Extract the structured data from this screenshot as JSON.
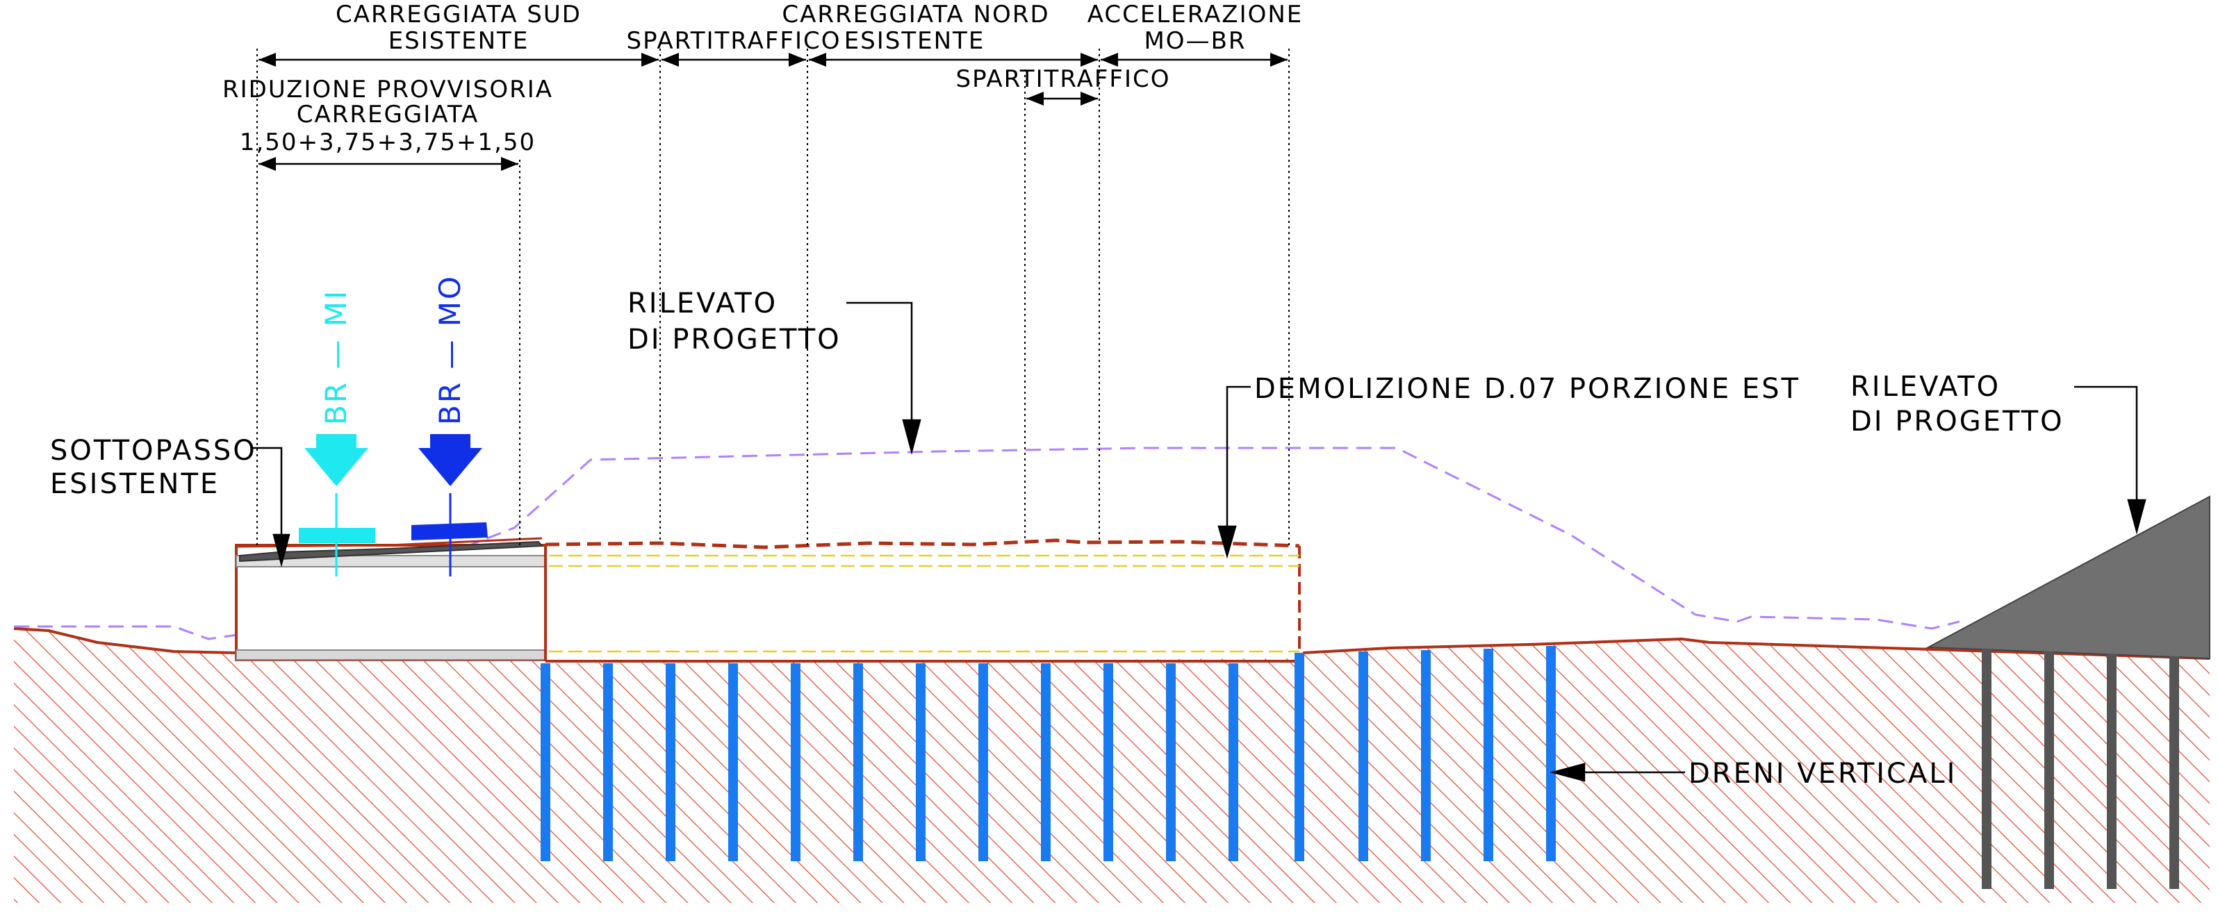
{
  "labels": {
    "carreggiata_sud_1": "CARREGGIATA SUD",
    "carreggiata_sud_2": "ESISTENTE",
    "spartitraffico_1": "SPARTITRAFFICO",
    "carreggiata_nord_1": "CARREGGIATA NORD",
    "carreggiata_nord_2": "ESISTENTE",
    "accelerazione_1": "ACCELERAZIONE",
    "accelerazione_2": "MO—BR",
    "spartitraffico_2": "SPARTITRAFFICO",
    "riduzione_1": "RIDUZIONE PROVVISORIA",
    "riduzione_2": "CARREGGIATA",
    "riduzione_3": "1,50+3,75+3,75+1,50",
    "rilevato_left_1": "RILEVATO",
    "rilevato_left_2": "DI PROGETTO",
    "demolizione": "DEMOLIZIONE D.07 PORZIONE EST",
    "rilevato_right_1": "RILEVATO",
    "rilevato_right_2": "DI PROGETTO",
    "sottopasso_1": "SOTTOPASSO",
    "sottopasso_2": "ESISTENTE",
    "dreni": "DRENI VERTICALI",
    "br_mi": "BR — MI",
    "br_mo": "BR — MO"
  },
  "colors": {
    "ground_line": "#b03018",
    "hatch": "#e0472a",
    "drain_blue": "#1a7af0",
    "pile_gray": "#555555",
    "embankment_gray": "#707070",
    "profile_dash": "#b080ff",
    "yellow_dash": "#e8d020",
    "arrow_cyan": "#20e8f0",
    "arrow_blue": "#1030e8"
  }
}
